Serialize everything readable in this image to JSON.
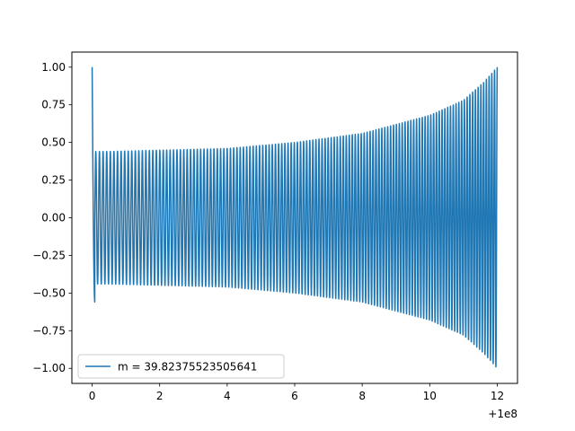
{
  "chart_data": {
    "type": "line",
    "title": "",
    "xlabel": "",
    "ylabel": "",
    "x_offset_label": "+1e8",
    "xlim": [
      -0.6,
      12.6
    ],
    "ylim": [
      -1.1,
      1.1
    ],
    "x_ticks": [
      0,
      2,
      4,
      6,
      8,
      10,
      12
    ],
    "x_tick_labels": [
      "0",
      "2",
      "4",
      "6",
      "8",
      "10",
      "12"
    ],
    "y_ticks": [
      -1.0,
      -0.75,
      -0.5,
      -0.25,
      0.0,
      0.25,
      0.5,
      0.75,
      1.0
    ],
    "y_tick_labels": [
      "−1.00",
      "−0.75",
      "−0.50",
      "−0.25",
      "0.00",
      "0.25",
      "0.50",
      "0.75",
      "1.00"
    ],
    "grid": false,
    "legend_position": "lower-left",
    "series": [
      {
        "name": "m = 39.82375523505641",
        "color": "#1f77b4",
        "x_range": [
          0,
          12
        ],
        "start_value": 1.0,
        "initial_min": -0.56,
        "amplitude_start": 0.44,
        "amplitude_end": 1.0,
        "amplitude_points": [
          [
            0.5,
            0.44
          ],
          [
            4,
            0.46
          ],
          [
            6,
            0.5
          ],
          [
            8,
            0.56
          ],
          [
            10,
            0.68
          ],
          [
            11,
            0.78
          ],
          [
            11.6,
            0.9
          ],
          [
            12,
            1.0
          ]
        ],
        "approx_cycles": 130
      }
    ]
  }
}
